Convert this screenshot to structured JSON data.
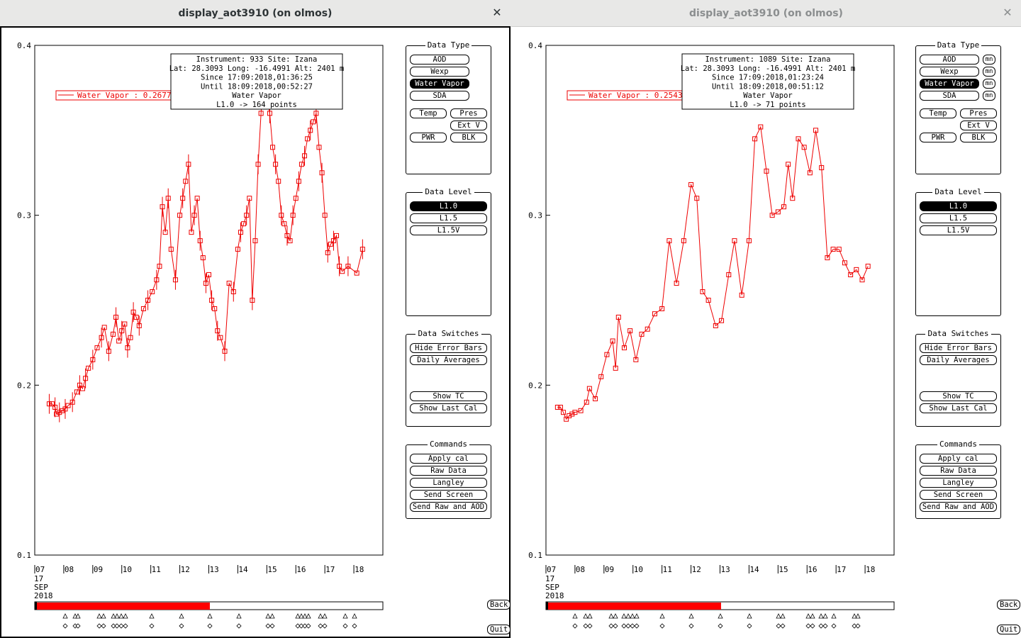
{
  "windows": [
    {
      "title": "display_aot3910 (on olmos)",
      "close_label": "✕",
      "info": [
        "Instrument: 933 Site: Izana",
        "Lat: 28.3093 Long: -16.4991 Alt: 2401 m",
        "Since 17:09:2018,01:36:25",
        "Until 18:09:2018,00:52:27",
        "Water Vapor",
        "L1.0 -> 164 points"
      ],
      "legend_label": "Water Vapor : 0.2677 ±",
      "show_mn": false,
      "bar_fill_fraction": 0.505,
      "event_x": [
        92,
        106,
        110,
        140,
        146,
        160,
        165,
        171,
        177,
        214,
        256,
        296,
        337,
        378,
        384,
        420,
        425,
        430,
        435,
        452,
        458,
        487,
        500
      ],
      "chart_data": {
        "type": "line",
        "yticks": [
          "0.4",
          "0.3",
          "0.2",
          "0.1"
        ],
        "ylim": [
          0.1,
          0.4
        ],
        "xlim": [
          7.0,
          19.0
        ],
        "xticks": [
          "07",
          "08",
          "09",
          "10",
          "11",
          "12",
          "13",
          "14",
          "15",
          "16",
          "17",
          "18"
        ],
        "date_label": [
          "17",
          "SEP",
          "2018"
        ],
        "series": [
          {
            "points": [
              [
                7.5,
                0.189
              ],
              [
                7.6,
                0.189
              ],
              [
                7.7,
                0.187
              ],
              [
                7.75,
                0.183
              ],
              [
                7.85,
                0.184
              ],
              [
                7.95,
                0.185
              ],
              [
                8.05,
                0.186
              ],
              [
                8.15,
                0.188
              ],
              [
                8.3,
                0.19
              ],
              [
                8.45,
                0.196
              ],
              [
                8.55,
                0.2
              ],
              [
                8.65,
                0.198
              ],
              [
                8.75,
                0.204
              ],
              [
                8.85,
                0.21
              ],
              [
                9.0,
                0.215
              ],
              [
                9.15,
                0.222
              ],
              [
                9.3,
                0.228
              ],
              [
                9.4,
                0.234
              ],
              [
                9.55,
                0.22
              ],
              [
                9.7,
                0.23
              ],
              [
                9.8,
                0.24
              ],
              [
                9.9,
                0.226
              ],
              [
                10.0,
                0.232
              ],
              [
                10.1,
                0.236
              ],
              [
                10.2,
                0.222
              ],
              [
                10.3,
                0.228
              ],
              [
                10.4,
                0.243
              ],
              [
                10.5,
                0.24
              ],
              [
                10.6,
                0.235
              ],
              [
                10.75,
                0.245
              ],
              [
                10.9,
                0.25
              ],
              [
                11.05,
                0.255
              ],
              [
                11.2,
                0.262
              ],
              [
                11.3,
                0.27
              ],
              [
                11.4,
                0.305
              ],
              [
                11.5,
                0.29
              ],
              [
                11.6,
                0.31
              ],
              [
                11.7,
                0.28
              ],
              [
                11.85,
                0.262
              ],
              [
                12.0,
                0.3
              ],
              [
                12.1,
                0.31
              ],
              [
                12.2,
                0.32
              ],
              [
                12.3,
                0.33
              ],
              [
                12.4,
                0.29
              ],
              [
                12.5,
                0.3
              ],
              [
                12.6,
                0.31
              ],
              [
                12.7,
                0.285
              ],
              [
                12.8,
                0.275
              ],
              [
                12.9,
                0.26
              ],
              [
                13.0,
                0.265
              ],
              [
                13.1,
                0.25
              ],
              [
                13.2,
                0.245
              ],
              [
                13.3,
                0.232
              ],
              [
                13.4,
                0.228
              ],
              [
                13.55,
                0.22
              ],
              [
                13.7,
                0.26
              ],
              [
                13.85,
                0.255
              ],
              [
                14.0,
                0.28
              ],
              [
                14.1,
                0.29
              ],
              [
                14.2,
                0.295
              ],
              [
                14.3,
                0.3
              ],
              [
                14.4,
                0.31
              ],
              [
                14.5,
                0.25
              ],
              [
                14.6,
                0.285
              ],
              [
                14.7,
                0.33
              ],
              [
                14.8,
                0.36
              ],
              [
                14.9,
                0.385
              ],
              [
                15.0,
                0.37
              ],
              [
                15.1,
                0.36
              ],
              [
                15.2,
                0.34
              ],
              [
                15.3,
                0.33
              ],
              [
                15.4,
                0.32
              ],
              [
                15.5,
                0.3
              ],
              [
                15.6,
                0.295
              ],
              [
                15.7,
                0.288
              ],
              [
                15.8,
                0.285
              ],
              [
                15.9,
                0.3
              ],
              [
                16.0,
                0.31
              ],
              [
                16.1,
                0.32
              ],
              [
                16.2,
                0.33
              ],
              [
                16.3,
                0.335
              ],
              [
                16.4,
                0.345
              ],
              [
                16.5,
                0.35
              ],
              [
                16.6,
                0.355
              ],
              [
                16.7,
                0.36
              ],
              [
                16.8,
                0.34
              ],
              [
                16.9,
                0.325
              ],
              [
                17.0,
                0.3
              ],
              [
                17.1,
                0.278
              ],
              [
                17.2,
                0.283
              ],
              [
                17.3,
                0.285
              ],
              [
                17.4,
                0.288
              ],
              [
                17.5,
                0.27
              ],
              [
                17.6,
                0.267
              ],
              [
                17.8,
                0.27
              ],
              [
                18.1,
                0.266
              ],
              [
                18.3,
                0.28
              ]
            ]
          }
        ]
      },
      "data_type": {
        "title": "Data Type",
        "buttons": [
          "AOD",
          "Wexp",
          "Water Vapor",
          "SDA"
        ],
        "active": "Water Vapor",
        "small": [
          "Temp",
          "Pres",
          "Ext V",
          "PWR",
          "BLK"
        ]
      },
      "data_level": {
        "title": "Data Level",
        "buttons": [
          "L1.0",
          "L1.5",
          "L1.5V"
        ],
        "active": "L1.0"
      },
      "data_switches": {
        "title": "Data Switches",
        "buttons": [
          "Hide Error Bars",
          "Daily Averages",
          "Show TC",
          "Show Last Cal"
        ]
      },
      "commands": {
        "title": "Commands",
        "buttons": [
          "Apply cal",
          "Raw Data",
          "Langley",
          "Send Screen",
          "Send Raw and AOD"
        ]
      },
      "back_label": "Back",
      "quit_label": "Quit"
    },
    {
      "title": "display_aot3910 (on olmos)",
      "close_label": "✕",
      "info": [
        "Instrument: 1089 Site: Izana",
        "Lat: 28.3093 Long: -16.4991 Alt: 2401 m",
        "Since 17:09:2018,01:23:24",
        "Until 18:09:2018,00:51:12",
        "Water Vapor",
        "L1.0 -> 71 points"
      ],
      "legend_label": "Water Vapor : 0.2543 ±",
      "show_mn": true,
      "mn_label": "mn",
      "bar_fill_fraction": 0.505,
      "event_x": [
        811,
        826,
        832,
        862,
        868,
        880,
        886,
        892,
        898,
        934,
        975,
        1016,
        1057,
        1098,
        1104,
        1140,
        1146,
        1158,
        1164,
        1176,
        1205,
        1210
      ],
      "chart_data": {
        "type": "line",
        "yticks": [
          "0.4",
          "0.3",
          "0.2",
          "0.1"
        ],
        "ylim": [
          0.1,
          0.4
        ],
        "xlim": [
          7.0,
          19.0
        ],
        "xticks": [
          "07",
          "08",
          "09",
          "10",
          "11",
          "12",
          "13",
          "14",
          "15",
          "16",
          "17",
          "18"
        ],
        "date_label": [
          "17",
          "SEP",
          "2018"
        ],
        "series": [
          {
            "points": [
              [
                7.4,
                0.187
              ],
              [
                7.5,
                0.187
              ],
              [
                7.6,
                0.184
              ],
              [
                7.7,
                0.18
              ],
              [
                7.8,
                0.182
              ],
              [
                7.9,
                0.183
              ],
              [
                8.0,
                0.184
              ],
              [
                8.2,
                0.185
              ],
              [
                8.4,
                0.19
              ],
              [
                8.5,
                0.198
              ],
              [
                8.7,
                0.192
              ],
              [
                8.9,
                0.205
              ],
              [
                9.1,
                0.218
              ],
              [
                9.3,
                0.226
              ],
              [
                9.4,
                0.21
              ],
              [
                9.5,
                0.24
              ],
              [
                9.7,
                0.222
              ],
              [
                9.9,
                0.232
              ],
              [
                10.1,
                0.215
              ],
              [
                10.3,
                0.23
              ],
              [
                10.5,
                0.233
              ],
              [
                10.75,
                0.242
              ],
              [
                11.0,
                0.245
              ],
              [
                11.25,
                0.285
              ],
              [
                11.5,
                0.26
              ],
              [
                11.75,
                0.285
              ],
              [
                12.0,
                0.318
              ],
              [
                12.2,
                0.31
              ],
              [
                12.4,
                0.255
              ],
              [
                12.6,
                0.25
              ],
              [
                12.85,
                0.235
              ],
              [
                13.05,
                0.238
              ],
              [
                13.3,
                0.265
              ],
              [
                13.5,
                0.285
              ],
              [
                13.75,
                0.253
              ],
              [
                14.0,
                0.285
              ],
              [
                14.2,
                0.345
              ],
              [
                14.4,
                0.352
              ],
              [
                14.6,
                0.326
              ],
              [
                14.8,
                0.3
              ],
              [
                15.0,
                0.302
              ],
              [
                15.2,
                0.305
              ],
              [
                15.35,
                0.33
              ],
              [
                15.5,
                0.31
              ],
              [
                15.7,
                0.345
              ],
              [
                15.9,
                0.34
              ],
              [
                16.1,
                0.325
              ],
              [
                16.3,
                0.35
              ],
              [
                16.5,
                0.328
              ],
              [
                16.7,
                0.275
              ],
              [
                16.9,
                0.28
              ],
              [
                17.1,
                0.28
              ],
              [
                17.3,
                0.272
              ],
              [
                17.5,
                0.265
              ],
              [
                17.7,
                0.268
              ],
              [
                17.9,
                0.262
              ],
              [
                18.1,
                0.27
              ]
            ]
          }
        ]
      },
      "data_type": {
        "title": "Data Type",
        "buttons": [
          "AOD",
          "Wexp",
          "Water Vapor",
          "SDA"
        ],
        "active": "Water Vapor",
        "small": [
          "Temp",
          "Pres",
          "Ext V",
          "PWR",
          "BLK"
        ]
      },
      "data_level": {
        "title": "Data Level",
        "buttons": [
          "L1.0",
          "L1.5",
          "L1.5V"
        ],
        "active": "L1.0"
      },
      "data_switches": {
        "title": "Data Switches",
        "buttons": [
          "Hide Error Bars",
          "Daily Averages",
          "Show TC",
          "Show Last Cal"
        ]
      },
      "commands": {
        "title": "Commands",
        "buttons": [
          "Apply cal",
          "Raw Data",
          "Langley",
          "Send Screen",
          "Send Raw and AOD"
        ]
      },
      "back_label": "Back",
      "quit_label": "Quit"
    }
  ]
}
